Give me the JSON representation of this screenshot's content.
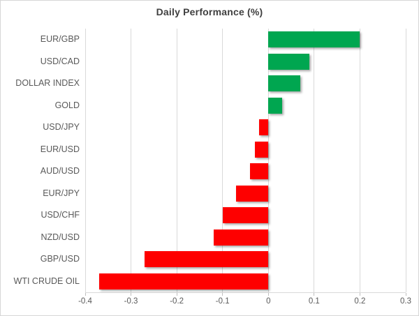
{
  "chart_data": {
    "type": "bar",
    "orientation": "horizontal",
    "title": "Daily Performance (%)",
    "categories": [
      "EUR/GBP",
      "USD/CAD",
      "DOLLAR INDEX",
      "GOLD",
      "USD/JPY",
      "EUR/USD",
      "AUD/USD",
      "EUR/JPY",
      "USD/CHF",
      "NZD/USD",
      "GBP/USD",
      "WTI CRUDE OIL"
    ],
    "values": [
      0.2,
      0.09,
      0.07,
      0.03,
      -0.02,
      -0.03,
      -0.04,
      -0.07,
      -0.1,
      -0.12,
      -0.27,
      -0.37
    ],
    "xlim": [
      -0.4,
      0.3
    ],
    "xticks": [
      -0.4,
      -0.3,
      -0.2,
      -0.1,
      0,
      0.1,
      0.2,
      0.3
    ],
    "xtick_labels": [
      "-0.4",
      "-0.3",
      "-0.2",
      "-0.1",
      "0",
      "0.1",
      "0.2",
      "0.3"
    ],
    "grid": true,
    "legend": "none",
    "colors": {
      "positive": "#00a650",
      "negative": "#fe0000",
      "gridline": "#d9d9d9",
      "axis_text": "#595959",
      "title_text": "#3f3f3f"
    }
  }
}
